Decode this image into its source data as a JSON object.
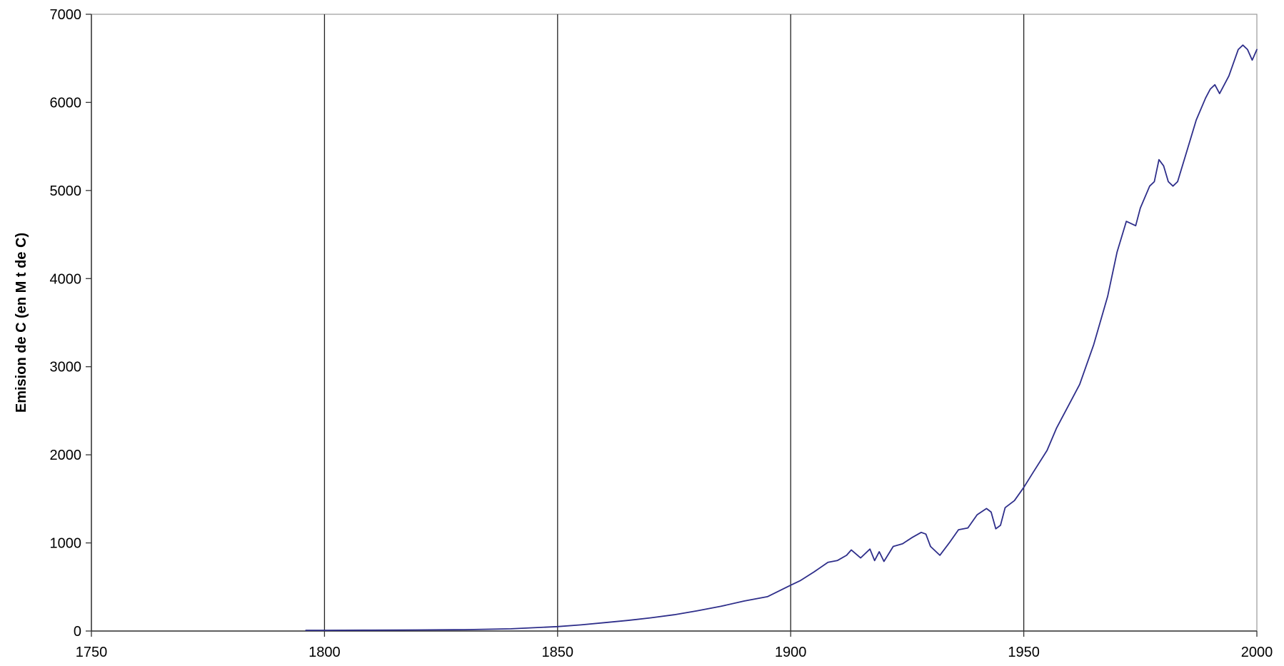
{
  "chart_data": {
    "type": "line",
    "title": "",
    "xlabel": "",
    "ylabel": "Emision de C (en M t de C)",
    "xlim": [
      1750,
      2000
    ],
    "ylim": [
      0,
      7000
    ],
    "x_ticks": [
      "1750",
      "1800",
      "1850",
      "1900",
      "1950",
      "2000"
    ],
    "y_ticks": [
      "0",
      "1000",
      "2000",
      "3000",
      "4000",
      "5000",
      "6000",
      "7000"
    ],
    "grid": "vertical",
    "legend": "none",
    "colors": {
      "line": "#2e2e8a",
      "grid": "#222222",
      "axis": "#333333"
    },
    "series": [
      {
        "x": [
          1796,
          1800,
          1810,
          1820,
          1830,
          1840,
          1850,
          1855,
          1860,
          1865,
          1870,
          1875,
          1880,
          1885,
          1890,
          1895,
          1900,
          1902,
          1905,
          1908,
          1910,
          1912,
          1913,
          1915,
          1917,
          1918,
          1919,
          1920,
          1922,
          1924,
          1926,
          1928,
          1929,
          1930,
          1932,
          1934,
          1936,
          1938,
          1940,
          1942,
          1943,
          1944,
          1945,
          1946,
          1948,
          1950,
          1952,
          1955,
          1957,
          1960,
          1962,
          1965,
          1968,
          1970,
          1972,
          1974,
          1975,
          1977,
          1978,
          1979,
          1980,
          1981,
          1982,
          1983,
          1985,
          1987,
          1989,
          1990,
          1991,
          1992,
          1994,
          1996,
          1997,
          1998,
          1999,
          2000
        ],
        "y": [
          8,
          8,
          10,
          12,
          15,
          25,
          50,
          70,
          95,
          120,
          150,
          185,
          230,
          280,
          340,
          390,
          520,
          570,
          670,
          780,
          800,
          860,
          920,
          830,
          930,
          800,
          900,
          790,
          960,
          990,
          1060,
          1120,
          1100,
          960,
          860,
          1000,
          1150,
          1170,
          1320,
          1390,
          1350,
          1160,
          1200,
          1400,
          1480,
          1630,
          1800,
          2050,
          2300,
          2600,
          2800,
          3250,
          3800,
          4300,
          4650,
          4600,
          4800,
          5050,
          5100,
          5350,
          5280,
          5100,
          5050,
          5100,
          5450,
          5800,
          6050,
          6150,
          6200,
          6100,
          6300,
          6600,
          6650,
          6600,
          6480,
          6600
        ]
      }
    ]
  }
}
